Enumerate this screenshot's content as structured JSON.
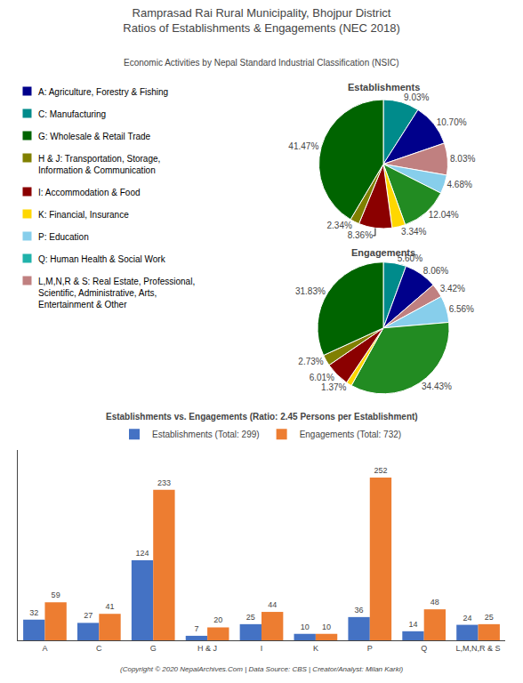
{
  "title": "Ramprasad Rai Rural Municipality, Bhojpur District\nRatios of Establishments & Engagements (NEC 2018)",
  "subtitle": "Economic Activities by Nepal Standard Industrial Classification (NSIC)",
  "annotations": [
    "(Copyright © 2020 NepalArchives.Com | Data Source: CBS | Creator/Analyst: Milan Karki)"
  ],
  "chart_data": [
    {
      "type": "legend",
      "categories": [
        "A: Agriculture, Forestry & Fishing",
        "C: Manufacturing",
        "G: Wholesale & Retail Trade",
        "H & J: Transportation, Storage,\nInformation & Communication",
        "I: Accommodation & Food",
        "K: Financial, Insurance",
        "P: Education",
        "Q: Human Health & Social Work",
        "L,M,N,R & S: Real Estate, Professional,\nScientific, Administrative, Arts,\nEntertainment & Other"
      ],
      "colors": [
        "#00008B",
        "#008B8B",
        "#006400",
        "#808000",
        "#8B0000",
        "#FFD700",
        "#87CEEB",
        "#20B2AA",
        "#C08080"
      ]
    },
    {
      "type": "pie",
      "title": "Establishments",
      "values": [
        9.03,
        10.7,
        8.03,
        4.68,
        12.04,
        3.34,
        8.36,
        2.34,
        41.47
      ],
      "value_labels": [
        "9.03%",
        "10.70%",
        "8.03%",
        "4.68%",
        "12.04%",
        "3.34%",
        "8.36%",
        "2.34%",
        "41.47%"
      ],
      "colors": [
        "#008B8B",
        "#00008B",
        "#C08080",
        "#87CEEB",
        "#228B22",
        "#FFD700",
        "#8B0000",
        "#808000",
        "#006400"
      ],
      "data_labels": true
    },
    {
      "type": "pie",
      "title": "Engagements",
      "values": [
        5.6,
        8.06,
        3.42,
        6.56,
        34.43,
        1.37,
        6.01,
        2.73,
        31.83
      ],
      "value_labels": [
        "5.60%",
        "8.06%",
        "3.42%",
        "6.56%",
        "34.43%",
        "1.37%",
        "6.01%",
        "2.73%",
        "31.83%"
      ],
      "colors": [
        "#008B8B",
        "#00008B",
        "#C08080",
        "#87CEEB",
        "#228B22",
        "#FFD700",
        "#8B0000",
        "#808000",
        "#006400"
      ],
      "data_labels": true
    },
    {
      "type": "bar",
      "title": "Establishments vs. Engagements (Ratio: 2.45 Persons per Establishment)",
      "categories": [
        "A",
        "C",
        "G",
        "H & J",
        "I",
        "K",
        "P",
        "Q",
        "L,M,N,R & S"
      ],
      "series": [
        {
          "name": "Establishments (Total: 299)",
          "color": "#4472C4",
          "values": [
            32,
            27,
            124,
            7,
            25,
            10,
            36,
            14,
            24
          ]
        },
        {
          "name": "Engagements (Total: 732)",
          "color": "#ED7D31",
          "values": [
            59,
            41,
            233,
            20,
            44,
            10,
            252,
            48,
            25
          ]
        }
      ],
      "ylim": [
        0,
        295
      ],
      "tick_labels": "x",
      "grid": false,
      "data_labels": true,
      "legend": "top"
    }
  ]
}
